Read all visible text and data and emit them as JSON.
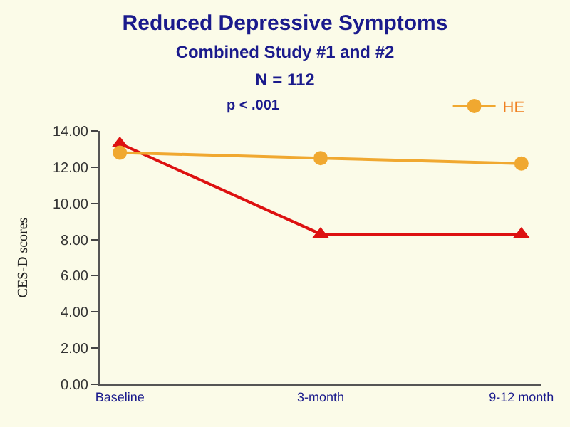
{
  "chart_data": {
    "type": "line",
    "title": "Reduced Depressive Symptoms",
    "subtitle": "Combined Study #1 and #2\nN = 112",
    "ylabel": "CES-D scores",
    "categories": [
      "Baseline",
      "3-month",
      "9-12 month"
    ],
    "series": [
      {
        "color": "#dd1111",
        "values": [
          13.3,
          8.3,
          8.3
        ],
        "marker": "triangle"
      },
      {
        "name": "HE",
        "color": "#f0a830",
        "values": [
          12.8,
          12.5,
          12.2
        ],
        "marker": "circle"
      }
    ],
    "ylim": [
      0,
      14
    ],
    "yticks": [
      {
        "value": 0,
        "label": "0.00"
      },
      {
        "value": 2,
        "label": "2.00"
      },
      {
        "value": 4,
        "label": "4.00"
      },
      {
        "value": 6,
        "label": "6.00"
      },
      {
        "value": 8,
        "label": "8.00"
      },
      {
        "value": 10,
        "label": "10.00"
      },
      {
        "value": 12,
        "label": "12.00"
      },
      {
        "value": 14,
        "label": "14.00"
      }
    ],
    "annotations": [
      "p < .001"
    ],
    "grid": false,
    "legend": "top right"
  }
}
